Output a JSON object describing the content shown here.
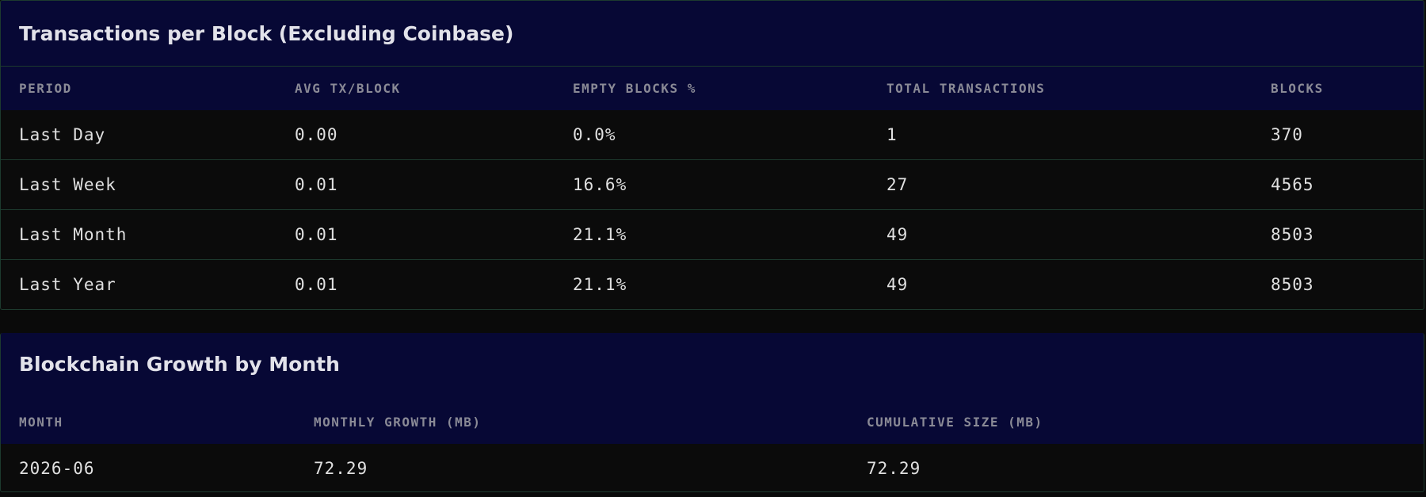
{
  "tx_table": {
    "title": "Transactions per Block (Excluding Coinbase)",
    "columns": [
      "PERIOD",
      "AVG TX/BLOCK",
      "EMPTY BLOCKS %",
      "TOTAL TRANSACTIONS",
      "BLOCKS"
    ],
    "rows": [
      [
        "Last Day",
        "0.00",
        "0.0%",
        "1",
        "370"
      ],
      [
        "Last Week",
        "0.01",
        "16.6%",
        "27",
        "4565"
      ],
      [
        "Last Month",
        "0.01",
        "21.1%",
        "49",
        "8503"
      ],
      [
        "Last Year",
        "0.01",
        "21.1%",
        "49",
        "8503"
      ]
    ]
  },
  "growth_table": {
    "title": "Blockchain Growth by Month",
    "columns": [
      "MONTH",
      "MONTHLY GROWTH (MB)",
      "CUMULATIVE SIZE (MB)"
    ],
    "rows": [
      [
        "2026-06",
        "72.29",
        "72.29"
      ]
    ]
  }
}
